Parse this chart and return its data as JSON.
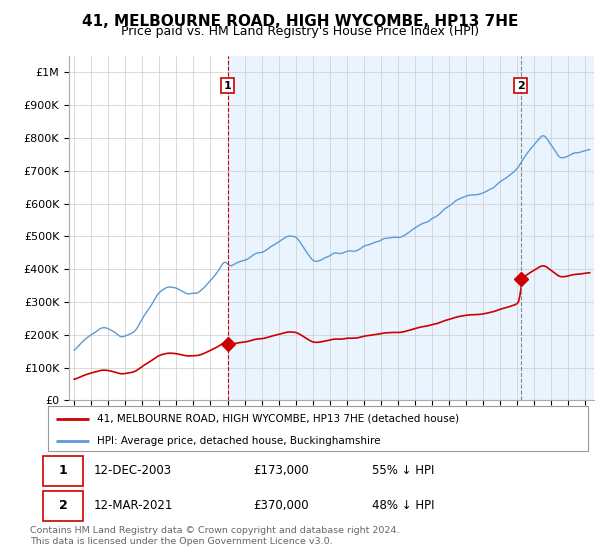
{
  "title": "41, MELBOURNE ROAD, HIGH WYCOMBE, HP13 7HE",
  "subtitle": "Price paid vs. HM Land Registry's House Price Index (HPI)",
  "ytick_values": [
    0,
    100000,
    200000,
    300000,
    400000,
    500000,
    600000,
    700000,
    800000,
    900000,
    1000000
  ],
  "ylim": [
    0,
    1050000
  ],
  "xlim_start": 1994.7,
  "xlim_end": 2025.5,
  "hpi_color": "#5b9bd5",
  "hpi_fill_color": "#ddeeff",
  "price_color": "#cc0000",
  "marker1_x": 2004.0,
  "marker1_y": 173000,
  "marker2_x": 2021.2,
  "marker2_y": 370000,
  "sale1_date": "12-DEC-2003",
  "sale1_price": "£173,000",
  "sale1_note": "55% ↓ HPI",
  "sale2_date": "12-MAR-2021",
  "sale2_price": "£370,000",
  "sale2_note": "48% ↓ HPI",
  "legend_line1": "41, MELBOURNE ROAD, HIGH WYCOMBE, HP13 7HE (detached house)",
  "legend_line2": "HPI: Average price, detached house, Buckinghamshire",
  "footnote": "Contains HM Land Registry data © Crown copyright and database right 2024.\nThis data is licensed under the Open Government Licence v3.0.",
  "grid_color": "#cccccc",
  "title_fontsize": 11,
  "subtitle_fontsize": 9,
  "tick_fontsize": 8
}
